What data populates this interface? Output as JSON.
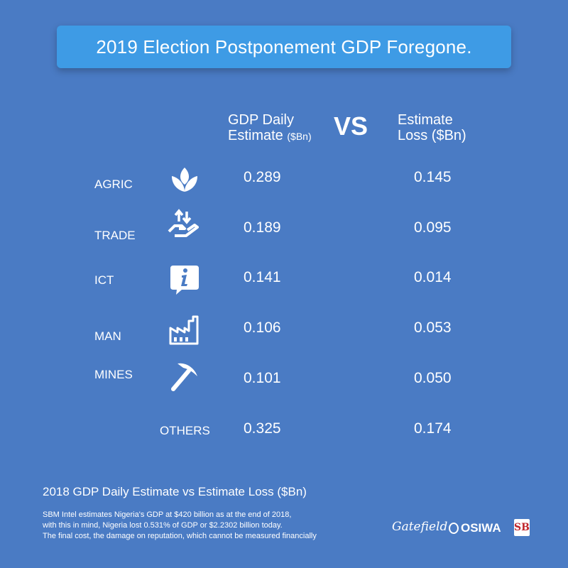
{
  "title": "2019 Election Postponement GDP Foregone.",
  "chart_data": {
    "type": "table",
    "columns": [
      {
        "line1": "GDP Daily",
        "line2": "Estimate",
        "unit": "($Bn)"
      },
      {
        "line1": "Estimate",
        "line2": "Loss ($Bn)"
      }
    ],
    "vs_label": "VS",
    "rows": [
      {
        "label": "AGRIC",
        "icon": "plant-leaves-icon",
        "gdp_daily": "0.289",
        "loss": "0.145"
      },
      {
        "label": "TRADE",
        "icon": "hand-exchange-icon",
        "gdp_daily": "0.189",
        "loss": "0.095"
      },
      {
        "label": "ICT",
        "icon": "info-bubble-icon",
        "gdp_daily": "0.141",
        "loss": "0.014"
      },
      {
        "label": "MAN",
        "icon": "factory-icon",
        "gdp_daily": "0.106",
        "loss": "0.053"
      },
      {
        "label": "MINES",
        "icon": "pickaxe-icon",
        "gdp_daily": "0.101",
        "loss": "0.050"
      },
      {
        "label": "OTHERS",
        "icon": "",
        "gdp_daily": "0.325",
        "loss": "0.174"
      }
    ]
  },
  "subtitle": "2018 GDP Daily Estimate vs Estimate Loss ($Bn)",
  "note": [
    "SBM Intel estimates Nigeria's GDP at $420 billion as at the end of 2018,",
    "with this in mind, Nigeria lost 0.531% of GDP or $2.2302 billion today.",
    "The final cost, the damage on reputation, which cannot be measured financially"
  ],
  "logos": {
    "gatefield": "Gatefield",
    "osiwa": "OSIWA",
    "sb": "SB"
  },
  "colors": {
    "background": "#4a7bc4",
    "title_bar": "#3e9be5",
    "text": "#ffffff",
    "sb_red": "#c0272d"
  }
}
